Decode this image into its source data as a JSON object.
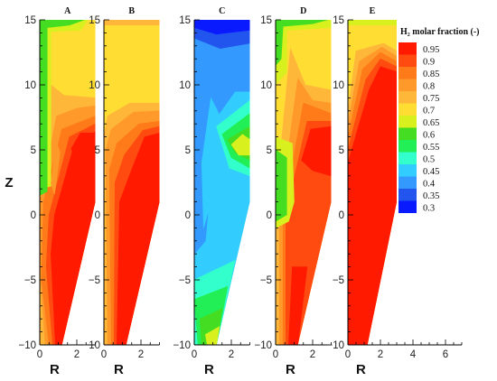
{
  "chart_data": {
    "type": "heatmap",
    "ylabel": "Z",
    "xlabel": "R",
    "ylim": [
      -10,
      15
    ],
    "y_ticks": [
      "15",
      "10",
      "5",
      "0",
      "−5",
      "−10"
    ],
    "y_tick_values": [
      15,
      10,
      5,
      0,
      -5,
      -10
    ],
    "legend": {
      "title": "H₂ molar fraction (-)",
      "levels": [
        "0.95",
        "0.9",
        "0.85",
        "0.8",
        "0.75",
        "0.7",
        "0.65",
        "0.6",
        "0.55",
        "0.5",
        "0.45",
        "0.4",
        "0.35",
        "0.3"
      ],
      "colors": [
        "#ff1a00",
        "#ff4a10",
        "#ff7a18",
        "#ff9a2a",
        "#ffb73a",
        "#ffdd33",
        "#d8f01e",
        "#44dd22",
        "#22ee55",
        "#33ffcc",
        "#33ccff",
        "#3399ff",
        "#2255ee",
        "#0a1aff"
      ]
    },
    "panels": [
      {
        "label": "A",
        "x_ticks": [
          "0",
          "2"
        ],
        "x_tick_values": [
          0,
          2
        ],
        "xlim": [
          0,
          3
        ],
        "description": "Bottom and nozzle region ~0.95; core >0.9 near Z=5 at R=2.5; upper region 0.7; green 0.6 at top and left wall Z=2-15"
      },
      {
        "label": "B",
        "x_ticks": [
          "0",
          "2"
        ],
        "x_tick_values": [
          0,
          2
        ],
        "xlim": [
          0,
          3
        ],
        "description": "Red core 0.95 from bottom to Z~6; upper region 0.7"
      },
      {
        "label": "C",
        "x_ticks": [
          "0",
          "2"
        ],
        "x_tick_values": [
          0,
          2
        ],
        "xlim": [
          0,
          3
        ],
        "description": "Mostly 0.4-0.5 blues; 0.3 at top; green 0.6-0.65 near bottom nozzle and core at Z=5"
      },
      {
        "label": "D",
        "x_ticks": [
          "0",
          "2"
        ],
        "x_tick_values": [
          0,
          2
        ],
        "xlim": [
          0,
          3
        ],
        "description": "Red core near Z=5; green 0.6 at left wall Z=-1 to 4 and top; upper region 0.7"
      },
      {
        "label": "E",
        "x_ticks": [
          "0",
          "2",
          "4",
          "6"
        ],
        "x_tick_values": [
          0,
          2,
          4,
          6
        ],
        "xlim": [
          0,
          7
        ],
        "description": "Large red 0.95 region from bottom up to Z~11; upper region 0.7; thin 0.65 band at top"
      }
    ]
  }
}
